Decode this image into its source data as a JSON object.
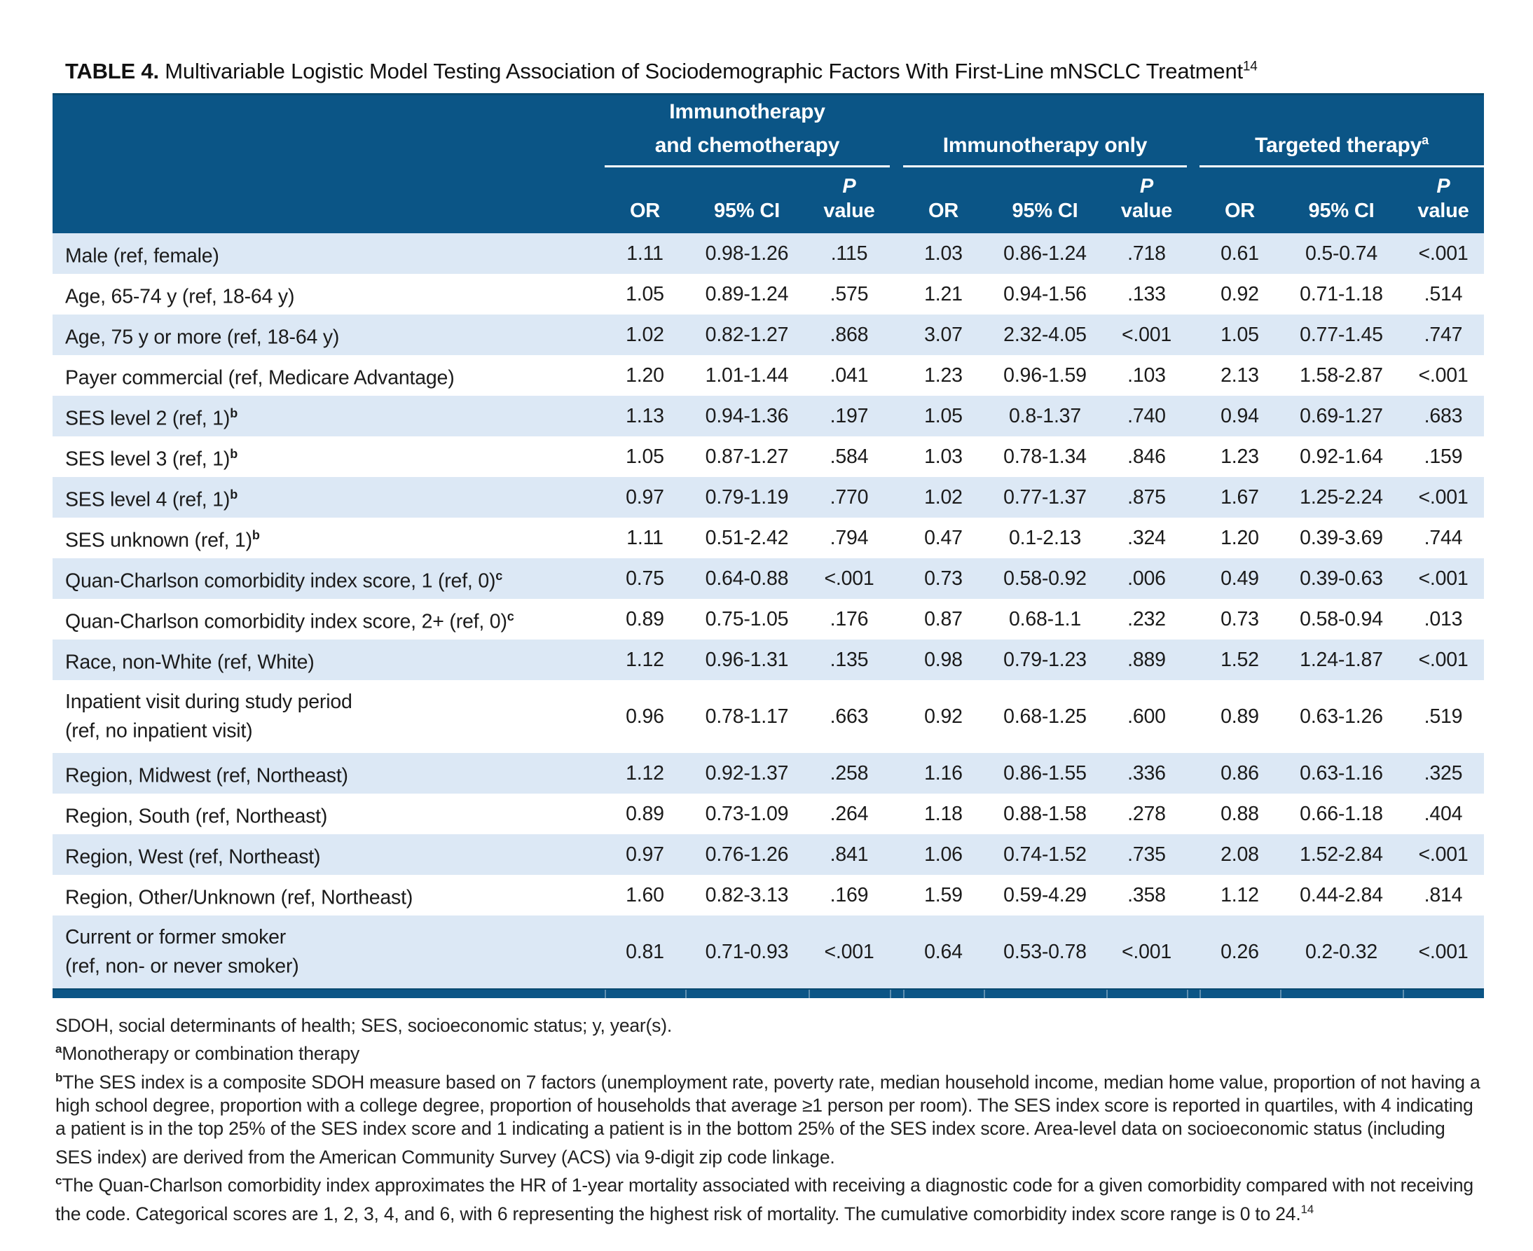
{
  "colors": {
    "header_blue": "#0B5586",
    "header_top_border": "#094A70",
    "row_highlight_blue": "#DCE8F5",
    "row_white": "#FFFFFF",
    "header_text": "#FFFFFF",
    "body_text": "#1B1B1B"
  },
  "title": {
    "label": "TABLE 4.",
    "text": " Multivariable Logistic Model Testing Association of Sociodemographic Factors With First-Line mNSCLC Treatment",
    "citation": "14"
  },
  "header": {
    "groups": [
      {
        "lines": [
          "Immunotherapy",
          "and chemotherapy"
        ],
        "sup": ""
      },
      {
        "lines": [
          "Immunotherapy only"
        ],
        "sup": ""
      },
      {
        "lines": [
          "Targeted therapy"
        ],
        "sup": "a"
      }
    ],
    "sub_columns": [
      {
        "parts": [
          "OR"
        ]
      },
      {
        "parts": [
          "95% CI"
        ]
      },
      {
        "parts": [
          "P",
          "value"
        ],
        "italic_first": true
      }
    ]
  },
  "rows": [
    {
      "label_lines": [
        "Male (ref, female)"
      ],
      "sup": "",
      "shade": "light",
      "tall": false,
      "values": [
        "1.11",
        "0.98-1.26",
        ".115",
        "1.03",
        "0.86-1.24",
        ".718",
        "0.61",
        "0.5-0.74",
        "<.001"
      ]
    },
    {
      "label_lines": [
        "Age, 65-74 y (ref, 18-64 y)"
      ],
      "sup": "",
      "shade": "white",
      "tall": false,
      "values": [
        "1.05",
        "0.89-1.24",
        ".575",
        "1.21",
        "0.94-1.56",
        ".133",
        "0.92",
        "0.71-1.18",
        ".514"
      ]
    },
    {
      "label_lines": [
        "Age, 75 y or more (ref, 18-64 y)"
      ],
      "sup": "",
      "shade": "light",
      "tall": false,
      "values": [
        "1.02",
        "0.82-1.27",
        ".868",
        "3.07",
        "2.32-4.05",
        "<.001",
        "1.05",
        "0.77-1.45",
        ".747"
      ]
    },
    {
      "label_lines": [
        "Payer commercial (ref, Medicare Advantage)"
      ],
      "sup": "",
      "shade": "white",
      "tall": false,
      "values": [
        "1.20",
        "1.01-1.44",
        ".041",
        "1.23",
        "0.96-1.59",
        ".103",
        "2.13",
        "1.58-2.87",
        "<.001"
      ]
    },
    {
      "label_lines": [
        "SES level 2 (ref, 1)"
      ],
      "sup": "b",
      "shade": "light",
      "tall": false,
      "values": [
        "1.13",
        "0.94-1.36",
        ".197",
        "1.05",
        "0.8-1.37",
        ".740",
        "0.94",
        "0.69-1.27",
        ".683"
      ]
    },
    {
      "label_lines": [
        "SES level 3 (ref, 1)"
      ],
      "sup": "b",
      "shade": "white",
      "tall": false,
      "values": [
        "1.05",
        "0.87-1.27",
        ".584",
        "1.03",
        "0.78-1.34",
        ".846",
        "1.23",
        "0.92-1.64",
        ".159"
      ]
    },
    {
      "label_lines": [
        "SES level 4 (ref, 1)"
      ],
      "sup": "b",
      "shade": "light",
      "tall": false,
      "values": [
        "0.97",
        "0.79-1.19",
        ".770",
        "1.02",
        "0.77-1.37",
        ".875",
        "1.67",
        "1.25-2.24",
        "<.001"
      ]
    },
    {
      "label_lines": [
        "SES unknown (ref, 1)"
      ],
      "sup": "b",
      "shade": "white",
      "tall": false,
      "values": [
        "1.11",
        "0.51-2.42",
        ".794",
        "0.47",
        "0.1-2.13",
        ".324",
        "1.20",
        "0.39-3.69",
        ".744"
      ]
    },
    {
      "label_lines": [
        "Quan-Charlson comorbidity index score, 1 (ref, 0)"
      ],
      "sup": "c",
      "shade": "light",
      "tall": false,
      "values": [
        "0.75",
        "0.64-0.88",
        "<.001",
        "0.73",
        "0.58-0.92",
        ".006",
        "0.49",
        "0.39-0.63",
        "<.001"
      ]
    },
    {
      "label_lines": [
        "Quan-Charlson comorbidity index score, 2+ (ref, 0)"
      ],
      "sup": "c",
      "shade": "white",
      "tall": false,
      "values": [
        "0.89",
        "0.75-1.05",
        ".176",
        "0.87",
        "0.68-1.1",
        ".232",
        "0.73",
        "0.58-0.94",
        ".013"
      ]
    },
    {
      "label_lines": [
        "Race, non-White (ref, White)"
      ],
      "sup": "",
      "shade": "light",
      "tall": false,
      "values": [
        "1.12",
        "0.96-1.31",
        ".135",
        "0.98",
        "0.79-1.23",
        ".889",
        "1.52",
        "1.24-1.87",
        "<.001"
      ]
    },
    {
      "label_lines": [
        "Inpatient visit during study period",
        "(ref, no inpatient visit)"
      ],
      "sup": "",
      "shade": "white",
      "tall": true,
      "values": [
        "0.96",
        "0.78-1.17",
        ".663",
        "0.92",
        "0.68-1.25",
        ".600",
        "0.89",
        "0.63-1.26",
        ".519"
      ]
    },
    {
      "label_lines": [
        "Region, Midwest (ref, Northeast)"
      ],
      "sup": "",
      "shade": "light",
      "tall": false,
      "values": [
        "1.12",
        "0.92-1.37",
        ".258",
        "1.16",
        "0.86-1.55",
        ".336",
        "0.86",
        "0.63-1.16",
        ".325"
      ]
    },
    {
      "label_lines": [
        "Region, South (ref, Northeast)"
      ],
      "sup": "",
      "shade": "white",
      "tall": false,
      "values": [
        "0.89",
        "0.73-1.09",
        ".264",
        "1.18",
        "0.88-1.58",
        ".278",
        "0.88",
        "0.66-1.18",
        ".404"
      ]
    },
    {
      "label_lines": [
        "Region, West (ref, Northeast)"
      ],
      "sup": "",
      "shade": "light",
      "tall": false,
      "values": [
        "0.97",
        "0.76-1.26",
        ".841",
        "1.06",
        "0.74-1.52",
        ".735",
        "2.08",
        "1.52-2.84",
        "<.001"
      ]
    },
    {
      "label_lines": [
        "Region, Other/Unknown (ref, Northeast)"
      ],
      "sup": "",
      "shade": "white",
      "tall": false,
      "values": [
        "1.60",
        "0.82-3.13",
        ".169",
        "1.59",
        "0.59-4.29",
        ".358",
        "1.12",
        "0.44-2.84",
        ".814"
      ]
    },
    {
      "label_lines": [
        "Current or former smoker",
        "(ref, non- or never smoker)"
      ],
      "sup": "",
      "shade": "light",
      "tall": true,
      "values": [
        "0.81",
        "0.71-0.93",
        "<.001",
        "0.64",
        "0.53-0.78",
        "<.001",
        "0.26",
        "0.2-0.32",
        "<.001"
      ]
    }
  ],
  "footnotes": [
    {
      "sup": "",
      "text": "SDOH, social determinants of health; SES, socioeconomic status; y, year(s).",
      "tail_sup": ""
    },
    {
      "sup": "a",
      "text": "Monotherapy or combination therapy",
      "tail_sup": ""
    },
    {
      "sup": "b",
      "text": "The SES index is a composite SDOH measure based on 7 factors (unemployment rate, poverty rate, median household income, median home value, proportion of not having a high school degree, proportion with a college degree, proportion of households that average ≥1 person per room). The SES index score is reported in quartiles, with 4 indicating a patient is in the top 25% of the SES index score and 1 indicating a patient is in the bottom 25% of the SES index score. Area-level data on socioeconomic status (including SES index) are derived from the American Community Survey (ACS) via 9-digit zip code linkage.",
      "tail_sup": ""
    },
    {
      "sup": "c",
      "text": "The Quan-Charlson comorbidity index approximates the HR of 1-year mortality associated with receiving a diagnostic code for a given comorbidity compared with not receiving the code. Categorical scores are 1, 2, 3, 4, and 6, with 6 representing the highest risk of mortality. The cumulative comorbidity index score range is 0 to 24.",
      "tail_sup": "14"
    }
  ]
}
